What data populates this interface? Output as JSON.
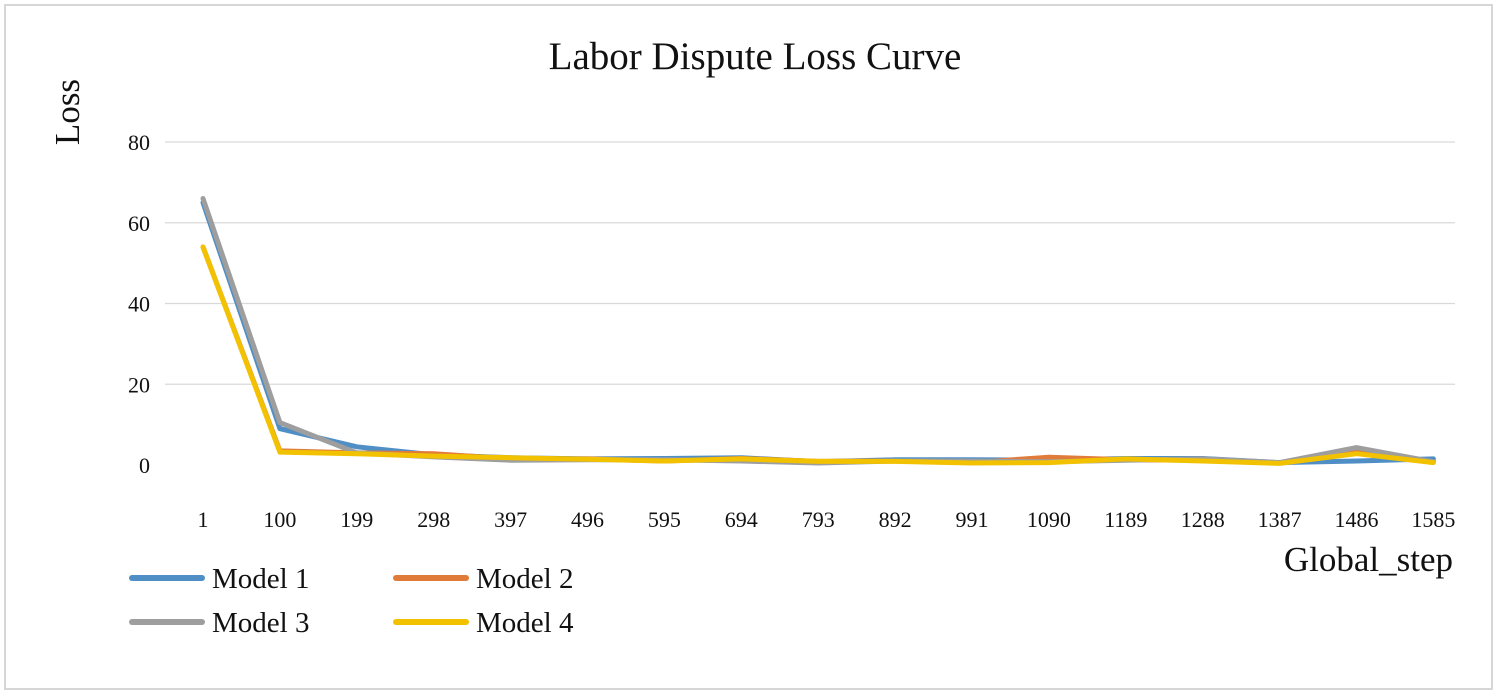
{
  "chart_data": {
    "type": "line",
    "title": "Labor Dispute Loss Curve",
    "xlabel": "Global_step",
    "ylabel": "Loss",
    "ylim": [
      0,
      80
    ],
    "yticks": [
      "0",
      "20",
      "40",
      "60",
      "80"
    ],
    "categories": [
      "1",
      "100",
      "199",
      "298",
      "397",
      "496",
      "595",
      "694",
      "793",
      "892",
      "991",
      "1090",
      "1189",
      "1288",
      "1387",
      "1486",
      "1585"
    ],
    "grid": true,
    "legend_placement": "bottom-left",
    "series": [
      {
        "name": "Model 1",
        "color": "#4f8fc6",
        "values": [
          65,
          9,
          4.5,
          2.5,
          1.8,
          1.5,
          1.6,
          1.8,
          0.8,
          1.3,
          1.3,
          1.2,
          1.6,
          1.6,
          0.6,
          1.0,
          1.5
        ]
      },
      {
        "name": "Model 2",
        "color": "#e07b39",
        "values": [
          54,
          3.5,
          3.0,
          2.8,
          1.5,
          1.5,
          1.0,
          1.6,
          0.9,
          1.0,
          0.6,
          1.9,
          1.3,
          1.2,
          0.5,
          3.5,
          0.8
        ]
      },
      {
        "name": "Model 3",
        "color": "#9e9e9e",
        "values": [
          66,
          10.5,
          3.0,
          2.0,
          1.2,
          1.3,
          1.3,
          1.0,
          0.5,
          1.0,
          1.0,
          0.8,
          1.2,
          1.5,
          0.6,
          4.3,
          0.8
        ]
      },
      {
        "name": "Model 4",
        "color": "#f2c200",
        "values": [
          54,
          3.2,
          2.8,
          2.2,
          1.8,
          1.4,
          1.0,
          1.5,
          0.9,
          0.9,
          0.5,
          0.6,
          1.5,
          1.0,
          0.4,
          2.8,
          0.6
        ]
      }
    ]
  }
}
